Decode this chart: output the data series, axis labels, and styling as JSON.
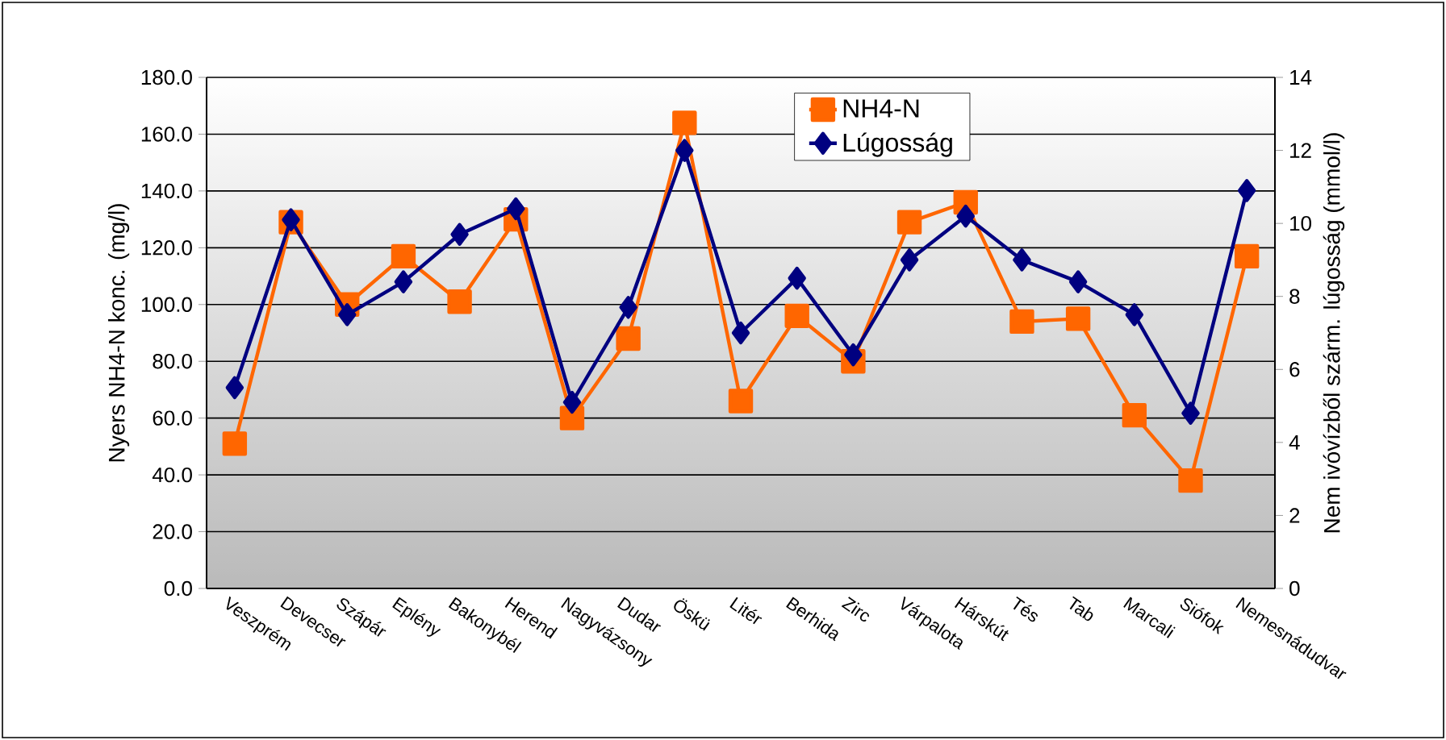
{
  "chart_data": {
    "type": "line",
    "categories": [
      "Veszprém",
      "Devecser",
      "Szápár",
      "Eplény",
      "Bakonybél",
      "Herend",
      "Nagyvázsony",
      "Dudar",
      "Öskü",
      "Litér",
      "Berhida",
      "Zirc",
      "Várpalota",
      "Hárskút",
      "Tés",
      "Tab",
      "Marcali",
      "Siófok",
      "Nemesnádudvar"
    ],
    "series": [
      {
        "name": "NH4-N",
        "color": "#ff6600",
        "marker": "square",
        "values": [
          51,
          129,
          100,
          117,
          101,
          130,
          60,
          88,
          164,
          66,
          96,
          80,
          129,
          136,
          94,
          95,
          61,
          38,
          117
        ]
      },
      {
        "name": "Lúgosság",
        "color": "#000080",
        "marker": "diamond",
        "axis": "y2",
        "values": [
          5.5,
          10.1,
          7.5,
          8.4,
          9.7,
          10.4,
          5.1,
          7.7,
          12.0,
          7.0,
          8.5,
          6.4,
          9.0,
          10.2,
          9.0,
          8.4,
          7.5,
          4.8,
          10.9
        ]
      }
    ],
    "ylabel": "Nyers NH4-N konc. (mg/l)",
    "y2label": "Nem ivóvízből szárm. lúgosság (mmol/l)",
    "ylim": [
      0,
      180
    ],
    "yticks": [
      {
        "value": 0,
        "label": "0.0"
      },
      {
        "value": 20,
        "label": "20.0"
      },
      {
        "value": 40,
        "label": "40.0"
      },
      {
        "value": 60,
        "label": "60.0"
      },
      {
        "value": 80,
        "label": "80.0"
      },
      {
        "value": 100,
        "label": "100.0"
      },
      {
        "value": 120,
        "label": "120.0"
      },
      {
        "value": 140,
        "label": "140.0"
      },
      {
        "value": 160,
        "label": "160.0"
      },
      {
        "value": 180,
        "label": "180.0"
      }
    ],
    "y2lim": [
      0,
      14
    ],
    "y2ticks": [
      0,
      2,
      4,
      6,
      8,
      10,
      12,
      14
    ],
    "grid": "y",
    "legend": "top right",
    "line_style": "solid"
  }
}
